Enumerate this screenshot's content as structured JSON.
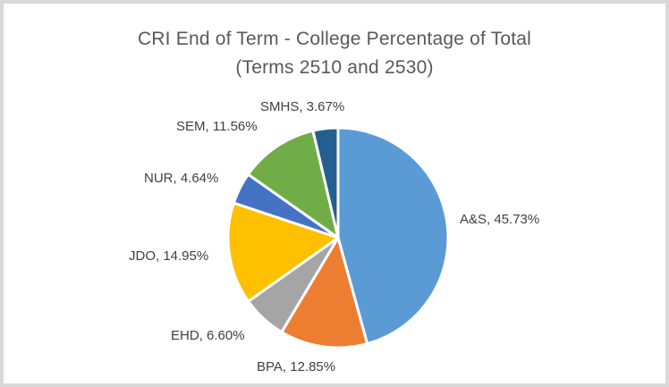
{
  "chart_data": {
    "type": "pie",
    "title_line1": "CRI End of Term - College Percentage of Total",
    "title_line2": "(Terms 2510 and 2530)",
    "categories": [
      "A&S",
      "BPA",
      "EHD",
      "JDO",
      "NUR",
      "SEM",
      "SMHS"
    ],
    "values": [
      45.73,
      12.85,
      6.6,
      14.95,
      4.64,
      11.56,
      3.67
    ],
    "unit": "%",
    "legend": "none",
    "label_format": "category, value%",
    "start_angle_deg": 0,
    "direction": "clockwise",
    "slices": [
      {
        "label": "A&S",
        "value": 45.73,
        "display": "A&S, 45.73%",
        "color": "#5B9BD5"
      },
      {
        "label": "BPA",
        "value": 12.85,
        "display": "BPA, 12.85%",
        "color": "#ED7D31"
      },
      {
        "label": "EHD",
        "value": 6.6,
        "display": "EHD, 6.60%",
        "color": "#A5A5A5"
      },
      {
        "label": "JDO",
        "value": 14.95,
        "display": "JDO, 14.95%",
        "color": "#FFC000"
      },
      {
        "label": "NUR",
        "value": 4.64,
        "display": "NUR, 4.64%",
        "color": "#4472C4"
      },
      {
        "label": "SEM",
        "value": 11.56,
        "display": "SEM, 11.56%",
        "color": "#70AD47"
      },
      {
        "label": "SMHS",
        "value": 3.67,
        "display": "SMHS, 3.67%",
        "color": "#255E91"
      }
    ],
    "colors": {
      "title_text": "#595959",
      "label_text": "#404040",
      "frame_border": "#D9D9D9",
      "background": "#FFFFFF",
      "slice_separator": "#FFFFFF"
    }
  }
}
